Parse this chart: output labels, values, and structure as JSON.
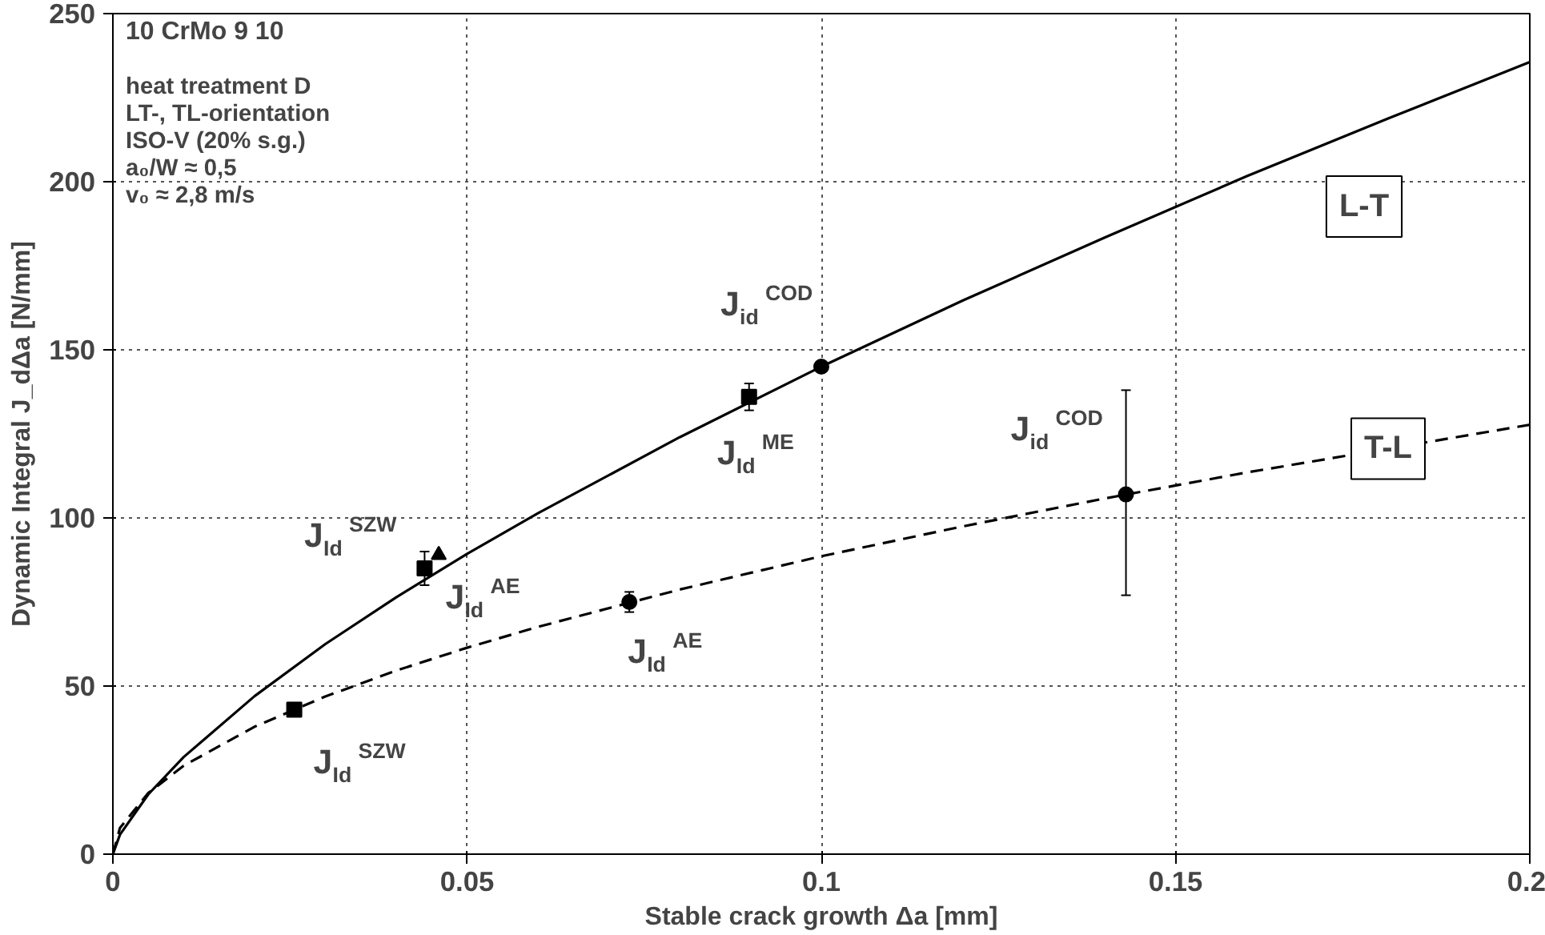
{
  "chart_data": {
    "type": "line",
    "xlabel": "Stable crack growth Δa [mm]",
    "ylabel": "Dynamic Integral J_dΔa [N/mm]",
    "xlim": [
      0,
      0.2
    ],
    "ylim": [
      0,
      250
    ],
    "xticks": [
      0,
      0.05,
      0.1,
      0.15,
      0.2
    ],
    "yticks": [
      0,
      50,
      100,
      150,
      200,
      250
    ],
    "grid": true,
    "series": [
      {
        "color": "#000000",
        "line_style": "solid",
        "marker": "none",
        "x": [
          0,
          0.001,
          0.005,
          0.01,
          0.02,
          0.03,
          0.04,
          0.05,
          0.06,
          0.08,
          0.1,
          0.12,
          0.14,
          0.16,
          0.18,
          0.2
        ],
        "values": [
          0,
          5.8,
          17.8,
          28.9,
          47,
          62.5,
          76.4,
          89.3,
          101.4,
          124,
          145,
          164.7,
          183.4,
          201.6,
          218.8,
          235.6
        ]
      },
      {
        "color": "#000000",
        "line_style": "dashed",
        "marker": "none",
        "x": [
          0,
          0.001,
          0.005,
          0.01,
          0.02,
          0.03,
          0.04,
          0.05,
          0.06,
          0.08,
          0.1,
          0.12,
          0.14,
          0.16,
          0.2
        ],
        "values": [
          0,
          7.8,
          18.2,
          26.3,
          37.9,
          46.9,
          54.6,
          61.4,
          67.6,
          78.7,
          88.6,
          97.5,
          105.8,
          113.5,
          127.7
        ]
      },
      {
        "type": "scatter",
        "color": "#000000",
        "marker": "circle",
        "x": [
          0.1,
          0.0729,
          0.143
        ],
        "values": [
          145,
          75,
          107
        ],
        "errors": [
          null,
          3,
          [
            77,
            138
          ]
        ]
      },
      {
        "type": "scatter",
        "color": "#000000",
        "marker": "square",
        "x": [
          0.0898,
          0.044,
          0.0256
        ],
        "values": [
          136,
          85,
          43
        ],
        "errors": [
          4,
          5,
          null
        ]
      },
      {
        "type": "scatter",
        "color": "#000000",
        "marker": "triangle",
        "x": [
          0.046
        ],
        "values": [
          89
        ]
      }
    ],
    "annotations": [
      "10 CrMo 9 10",
      "heat treatment D",
      "LT-, TL-orientation",
      "ISO-V (20% s.g.)",
      "a₀/W  ≈  0,5",
      "v₀      ≈  2,8 m/s",
      {
        "text": "L-T",
        "x": 0.18,
        "y": 218.8
      },
      {
        "text": "T-L",
        "x": 0.18,
        "y": 120.6
      },
      {
        "text": "J$_{id}$$^{COD}$",
        "x": 0.1,
        "y": 145
      },
      {
        "text": "J$_{Id}$$^{ME}$",
        "x": 0.0898,
        "y": 136
      },
      {
        "text": "J$_{Id}$$^{AE}$",
        "x": 0.044,
        "y": 85
      },
      {
        "text": "J$_{Id}$$^{SZW}$",
        "x": 0.046,
        "y": 89
      },
      {
        "text": "J$_{Id}$$^{AE}$",
        "x": 0.0729,
        "y": 75
      },
      {
        "text": "J$_{Id}$$^{SZW}$",
        "x": 0.0256,
        "y": 43
      },
      {
        "text": "J$_{id}$$^{COD}$",
        "x": 0.143,
        "y": 107
      }
    ]
  }
}
